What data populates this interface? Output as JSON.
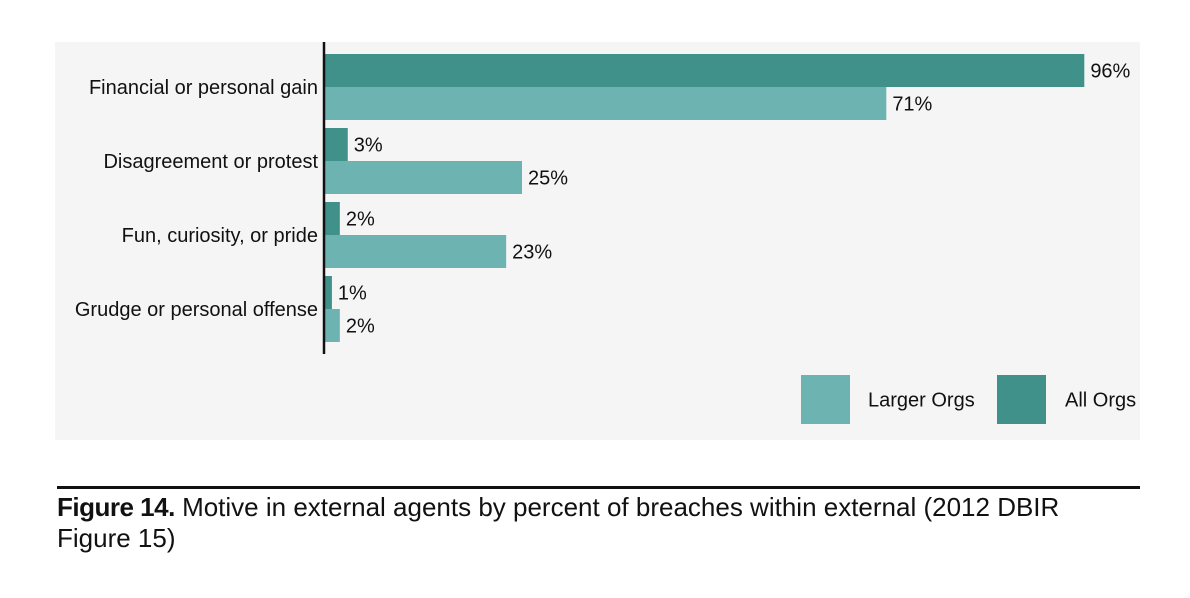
{
  "chart_data": {
    "type": "bar",
    "orientation": "horizontal",
    "categories": [
      "Financial or personal gain",
      "Disagreement or protest",
      "Fun, curiosity, or pride",
      "Grudge or personal offense"
    ],
    "series": [
      {
        "name": "All Orgs",
        "values": [
          96,
          3,
          2,
          1
        ],
        "color": "#3f918a"
      },
      {
        "name": "Larger Orgs",
        "values": [
          71,
          25,
          23,
          2
        ],
        "color": "#6db3b1"
      }
    ],
    "value_suffix": "%",
    "xlim": [
      0,
      100
    ],
    "grid": false,
    "legend_position": "bottom-right",
    "legend_order": [
      "Larger Orgs",
      "All Orgs"
    ]
  },
  "caption": {
    "label": "Figure 14.",
    "text": "Motive in external agents by percent of breaches within external (2012 DBIR Figure 15)"
  }
}
